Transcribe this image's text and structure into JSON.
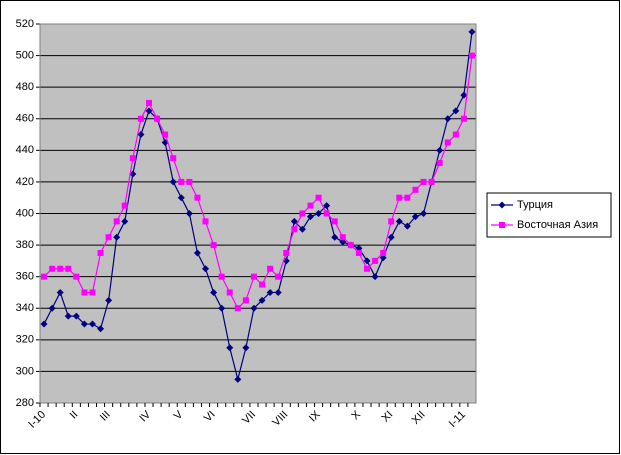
{
  "chart_data": {
    "type": "line",
    "categories": [
      "I-10",
      null,
      null,
      null,
      "II",
      null,
      null,
      null,
      "III",
      null,
      null,
      null,
      null,
      "IV",
      null,
      null,
      null,
      "V",
      null,
      null,
      null,
      "VI",
      null,
      null,
      null,
      null,
      "VII",
      null,
      null,
      null,
      "VIII",
      null,
      null,
      null,
      "IX",
      null,
      null,
      null,
      null,
      "X",
      null,
      null,
      null,
      "XI",
      null,
      null,
      null,
      "XII",
      null,
      null,
      null,
      null,
      "I-11",
      null
    ],
    "series": [
      {
        "name": "Турция",
        "color": "#000080",
        "marker": "diamond",
        "values": [
          330,
          340,
          350,
          335,
          335,
          330,
          330,
          327,
          345,
          385,
          395,
          425,
          450,
          465,
          460,
          445,
          420,
          410,
          400,
          375,
          365,
          350,
          340,
          315,
          295,
          315,
          340,
          345,
          350,
          350,
          370,
          395,
          390,
          398,
          400,
          405,
          385,
          382,
          380,
          378,
          370,
          360,
          372,
          385,
          395,
          392,
          398,
          400,
          420,
          440,
          460,
          465,
          475,
          515
        ]
      },
      {
        "name": "Восточная Азия",
        "color": "#ff00ff",
        "marker": "square",
        "values": [
          360,
          365,
          365,
          365,
          360,
          350,
          350,
          375,
          385,
          395,
          405,
          435,
          460,
          470,
          460,
          450,
          435,
          420,
          420,
          410,
          395,
          380,
          360,
          350,
          340,
          345,
          360,
          355,
          365,
          360,
          375,
          390,
          400,
          405,
          410,
          400,
          395,
          385,
          380,
          375,
          365,
          370,
          375,
          395,
          410,
          410,
          415,
          420,
          420,
          432,
          445,
          450,
          460,
          500
        ]
      }
    ],
    "ylim": [
      280,
      520
    ],
    "yticks": [
      280,
      300,
      320,
      340,
      360,
      380,
      400,
      420,
      440,
      460,
      480,
      500,
      520
    ],
    "grid": true,
    "legend": "right"
  }
}
